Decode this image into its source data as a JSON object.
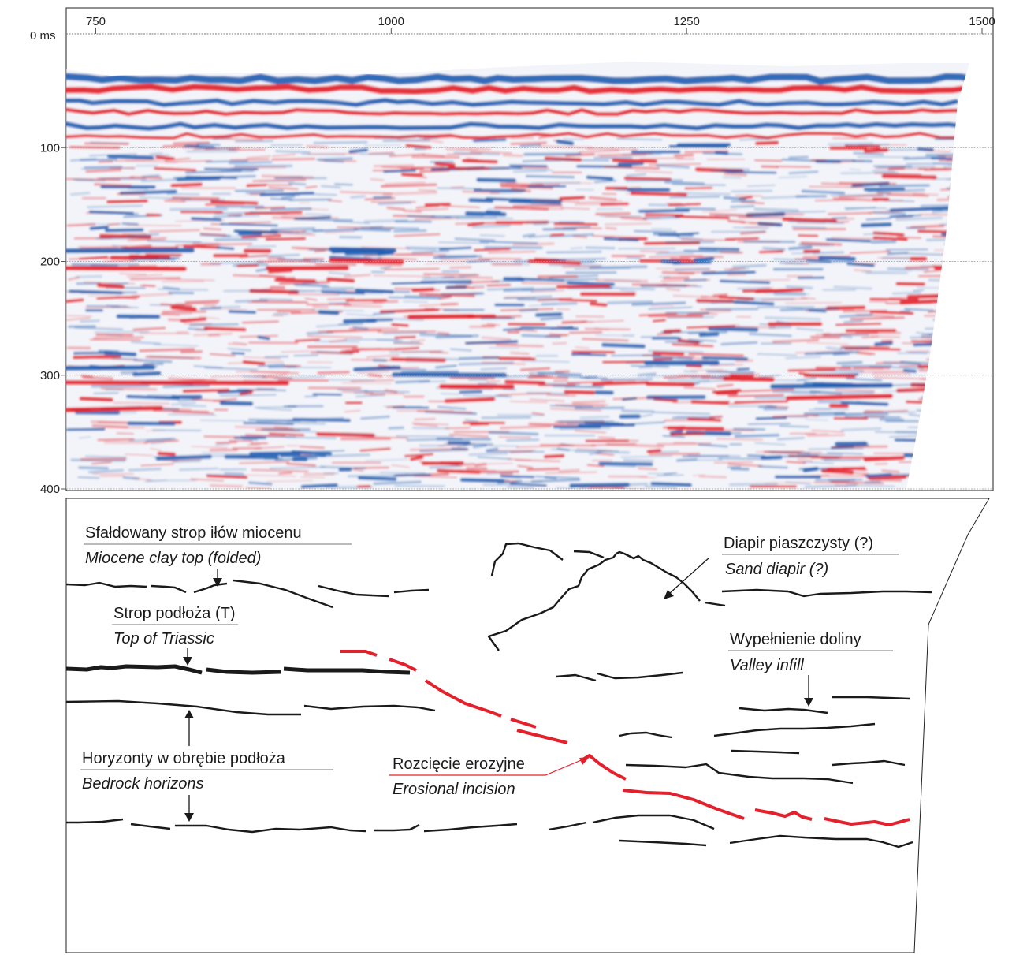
{
  "seismic_section": {
    "x_axis": {
      "ticks": [
        750,
        1000,
        1250,
        1500
      ],
      "range": [
        725,
        1508
      ]
    },
    "y_axis": {
      "unit_label": "0 ms",
      "ticks": [
        100,
        200,
        300,
        400
      ],
      "range": [
        0,
        400
      ]
    },
    "colors": {
      "positive": "#e3202b",
      "negative": "#1f5fb2",
      "gridline": "#9a9a9a"
    }
  },
  "interpretation": {
    "colors": {
      "horizon": "#1a1a1a",
      "erosion": "#e3202b",
      "leader": "#1a1a1a"
    },
    "labels": {
      "miocene_pl": "Sfałdowany strop iłów miocenu",
      "miocene_en": "Miocene clay top (folded)",
      "diapir_pl": "Diapir piaszczysty (?)",
      "diapir_en": "Sand diapir (?)",
      "triassic_pl": "Strop podłoża (T)",
      "triassic_en": "Top of Triassic",
      "valley_pl": "Wypełnienie doliny",
      "valley_en": "Valley infill",
      "bedrock_pl": "Horyzonty w obrębie podłoża",
      "bedrock_en": "Bedrock horizons",
      "erosion_pl": "Rozcięcie erozyjne",
      "erosion_en": "Erosional incision"
    }
  }
}
